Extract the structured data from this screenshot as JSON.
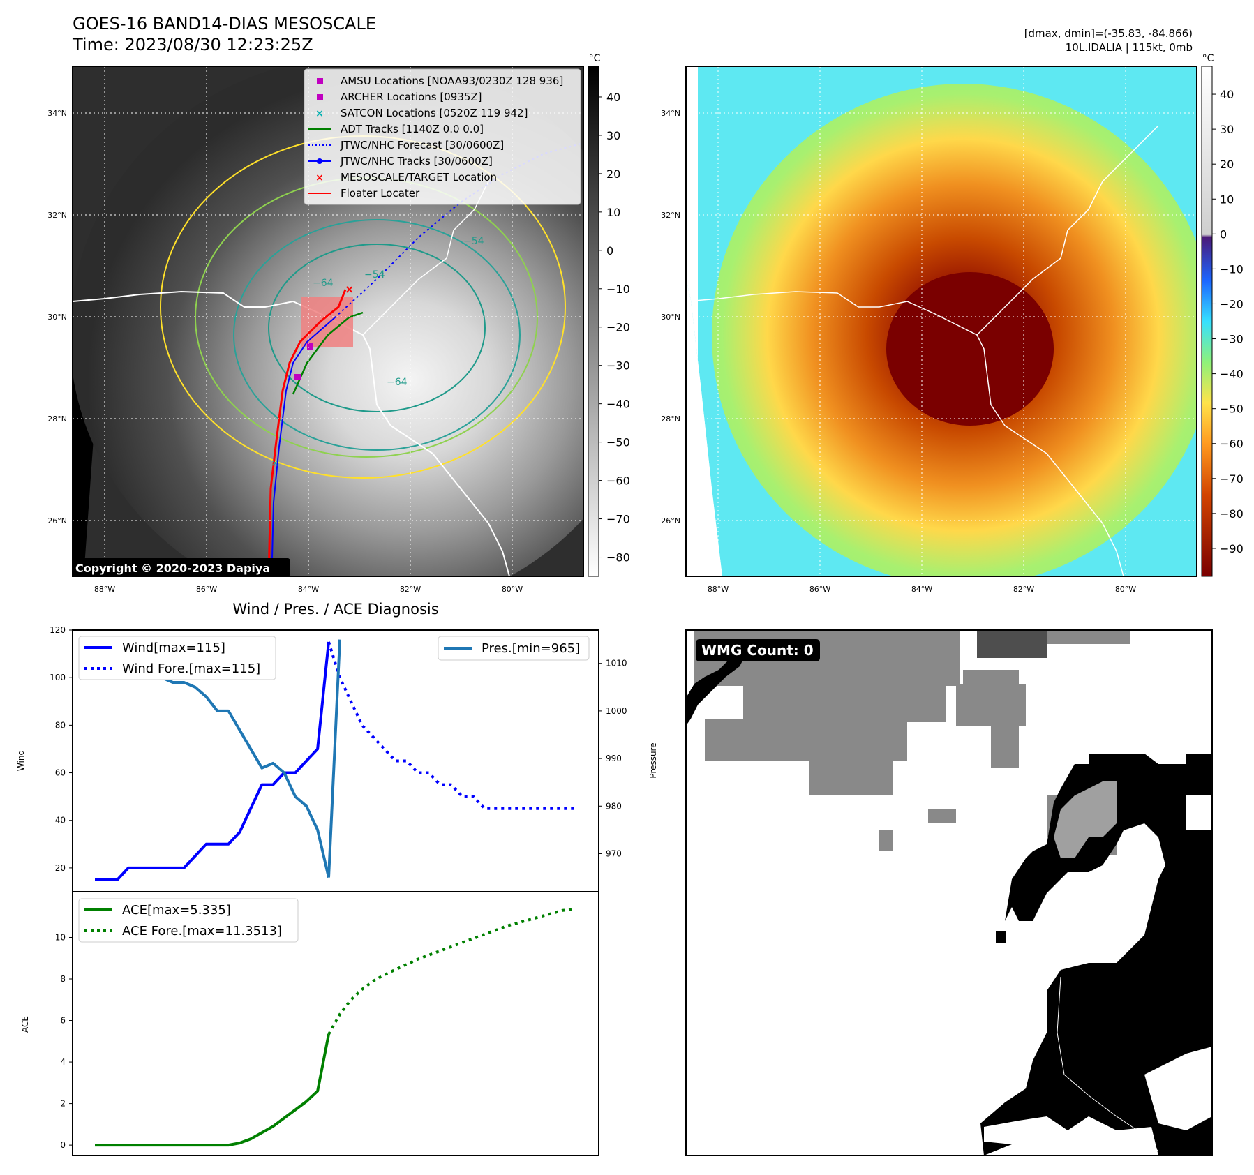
{
  "header": {
    "title_line1": "GOES-16 BAND14-DIAS MESOSCALE",
    "title_line2": "Time: 2023/08/30 12:23:25Z",
    "stats_line1": "[dmax, dmin]=(-35.83, -84.866)",
    "stats_line2": "10L.IDALIA | 115kt, 0mb"
  },
  "map_left": {
    "lat_labels": [
      "34°N",
      "32°N",
      "30°N",
      "28°N",
      "26°N"
    ],
    "lon_labels": [
      "88°W",
      "86°W",
      "84°W",
      "82°W",
      "80°W"
    ],
    "colorbar_unit": "°C",
    "colorbar_ticks": [
      "40",
      "30",
      "20",
      "10",
      "0",
      "−10",
      "−20",
      "−30",
      "−40",
      "−50",
      "−60",
      "−70",
      "−80"
    ],
    "copyright": "Copyright © 2020-2023 Dapiya",
    "contour_labels": [
      "−54",
      "−64",
      "−54",
      "−64"
    ],
    "legend": [
      {
        "label": "AMSU Locations [NOAA93/0230Z 128 936]",
        "color": "#c000c0",
        "marker": "square"
      },
      {
        "label": "ARCHER Locations [0935Z]",
        "color": "#c000c0",
        "marker": "square"
      },
      {
        "label": "SATCON Locations [0520Z 119 942]",
        "color": "#00b0b0",
        "marker": "x"
      },
      {
        "label": "ADT Tracks [1140Z 0.0 0.0]",
        "color": "#008000",
        "marker": "line"
      },
      {
        "label": "JTWC/NHC Forecast [30/0600Z]",
        "color": "#0000ff",
        "marker": "dotted"
      },
      {
        "label": "JTWC/NHC Tracks [30/0600Z]",
        "color": "#0000ff",
        "marker": "line-dot"
      },
      {
        "label": "MESOSCALE/TARGET Location",
        "color": "#ff0000",
        "marker": "x"
      },
      {
        "label": "Floater Locater",
        "color": "#ff0000",
        "marker": "line"
      }
    ]
  },
  "map_right": {
    "lat_labels": [
      "34°N",
      "32°N",
      "30°N",
      "28°N",
      "26°N"
    ],
    "lon_labels": [
      "88°W",
      "86°W",
      "84°W",
      "82°W",
      "80°W"
    ],
    "colorbar_unit": "°C",
    "colorbar_ticks": [
      "40",
      "30",
      "20",
      "10",
      "0",
      "−10",
      "−20",
      "−30",
      "−40",
      "−50",
      "−60",
      "−70",
      "−80",
      "−90"
    ]
  },
  "wmg": {
    "label": "WMG Count: 0"
  },
  "chart_data": [
    {
      "type": "line",
      "title": "Wind / Pres. / ACE Diagnosis",
      "ylabel": "Wind",
      "ylabel_right": "Pressure",
      "ylim": [
        10,
        120
      ],
      "yticks": [
        20,
        40,
        60,
        80,
        100,
        120
      ],
      "ylim_right": [
        962,
        1017
      ],
      "yticks_right": [
        970,
        980,
        990,
        1000,
        1010
      ],
      "x": [
        0,
        1,
        2,
        3,
        4,
        5,
        6,
        7,
        8,
        9,
        10,
        11,
        12,
        13,
        14,
        15,
        16,
        17,
        18,
        19,
        20,
        21,
        22,
        23,
        24,
        25,
        26,
        27,
        28,
        29,
        30,
        31,
        32,
        33,
        34,
        35,
        36,
        37,
        38,
        39,
        40,
        41,
        42,
        43
      ],
      "series": [
        {
          "name": "Wind[max=115]",
          "color": "#0000ff",
          "style": "solid",
          "x": [
            0,
            1,
            2,
            3,
            4,
            5,
            6,
            7,
            8,
            9,
            10,
            11,
            12,
            13,
            14,
            15,
            16,
            17,
            18,
            19,
            20,
            21
          ],
          "values": [
            15,
            15,
            15,
            20,
            20,
            20,
            20,
            20,
            20,
            25,
            30,
            30,
            30,
            35,
            45,
            55,
            55,
            60,
            60,
            65,
            70,
            115
          ]
        },
        {
          "name": "Wind Fore.[max=115]",
          "color": "#0000ff",
          "style": "dotted",
          "x": [
            21,
            22,
            23,
            24,
            25,
            26,
            27,
            28,
            29,
            30,
            31,
            32,
            33,
            34,
            35,
            36,
            37,
            38,
            39,
            40,
            41,
            42,
            43
          ],
          "values": [
            115,
            100,
            90,
            80,
            75,
            70,
            65,
            65,
            60,
            60,
            55,
            55,
            50,
            50,
            45,
            45,
            45,
            45,
            45,
            45,
            45,
            45,
            45
          ]
        },
        {
          "name": "Pres.[min=965]",
          "color": "#1f77b4",
          "style": "solid",
          "axis": "right",
          "x": [
            0,
            1,
            2,
            3,
            4,
            5,
            6,
            7,
            8,
            9,
            10,
            11,
            12,
            13,
            14,
            15,
            16,
            17,
            18,
            19,
            20,
            21
          ],
          "values": [
            1015,
            1015,
            1015,
            1009,
            1008,
            1007,
            1007,
            1006,
            1006,
            1005,
            1003,
            1000,
            1000,
            996,
            992,
            988,
            989,
            987,
            982,
            980,
            975,
            965
          ]
        },
        {
          "name": "",
          "color": "#1f77b4",
          "style": "solid",
          "axis": "right",
          "x": [
            21,
            22
          ],
          "values": [
            965,
            1015
          ]
        }
      ]
    },
    {
      "type": "line",
      "ylabel": "ACE",
      "ylim": [
        -0.5,
        12.2
      ],
      "yticks": [
        0,
        2,
        4,
        6,
        8,
        10
      ],
      "series": [
        {
          "name": "ACE[max=5.335]",
          "color": "#008000",
          "style": "solid",
          "x": [
            0,
            1,
            2,
            3,
            4,
            5,
            6,
            7,
            8,
            9,
            10,
            11,
            12,
            13,
            14,
            15,
            16,
            17,
            18,
            19,
            20,
            21
          ],
          "values": [
            0,
            0,
            0,
            0,
            0,
            0,
            0,
            0,
            0,
            0,
            0,
            0,
            0,
            0.1,
            0.3,
            0.6,
            0.9,
            1.3,
            1.7,
            2.1,
            2.6,
            5.335
          ]
        },
        {
          "name": "ACE Fore.[max=11.3513]",
          "color": "#008000",
          "style": "dotted",
          "x": [
            21,
            22,
            23,
            24,
            25,
            26,
            27,
            28,
            29,
            30,
            31,
            32,
            33,
            34,
            35,
            36,
            37,
            38,
            39,
            40,
            41,
            42,
            43
          ],
          "values": [
            5.335,
            6.3,
            7.0,
            7.5,
            7.9,
            8.2,
            8.45,
            8.7,
            8.95,
            9.15,
            9.35,
            9.55,
            9.75,
            9.95,
            10.15,
            10.35,
            10.55,
            10.7,
            10.85,
            11.0,
            11.15,
            11.3,
            11.3513
          ]
        }
      ]
    }
  ]
}
